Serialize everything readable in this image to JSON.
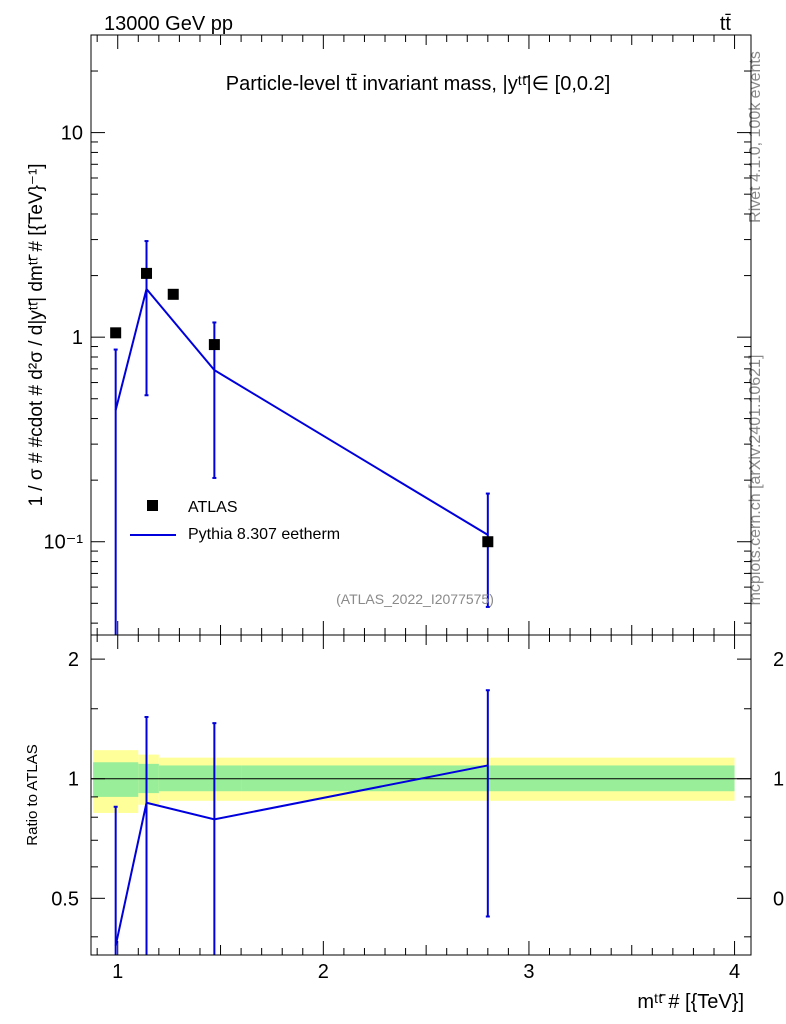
{
  "header": {
    "energy_label": "13000 GeV pp",
    "process_label": "tt̄"
  },
  "side_labels": {
    "rivet": "Rivet 4.1.0,  100k events",
    "mcplots": "mcplots.cern.ch [arXiv:2401.10621]"
  },
  "chart_data": [
    {
      "type": "scatter",
      "panel": "main",
      "title": "Particle-level tt̄ invariant mass, |yᵗᵗ̄|∈ [0,0.2]",
      "ylabel": "1 / σ # #cdot # d²σ / d|yᵗᵗ̄| dmᵗᵗ̄ # [{TeV}⁻¹]",
      "yscale": "log",
      "ylim": [
        0.035,
        30
      ],
      "xlim": [
        0.87,
        4.08
      ],
      "ytick_labels": [
        "10",
        "1",
        "10⁻¹"
      ],
      "ytick_values": [
        10,
        1,
        0.1
      ],
      "watermark": "(ATLAS_2022_I2077575)",
      "legend": {
        "placement": "left-center",
        "entries": [
          "ATLAS",
          "Pythia 8.307 eetherm"
        ]
      },
      "series": [
        {
          "name": "ATLAS",
          "marker": "square",
          "color": "#000000",
          "x": [
            0.99,
            1.14,
            1.27,
            1.47,
            2.8
          ],
          "y": [
            1.05,
            2.05,
            1.62,
            0.92,
            0.1
          ]
        },
        {
          "name": "Pythia 8.307 eetherm",
          "marker": "line",
          "color": "#0000dd",
          "x": [
            0.99,
            1.14,
            1.47,
            2.8
          ],
          "y": [
            0.44,
            1.72,
            0.69,
            0.108
          ],
          "err_lo": [
            0.02,
            0.52,
            0.205,
            0.048
          ],
          "err_hi": [
            0.87,
            2.95,
            1.18,
            0.172
          ]
        }
      ]
    },
    {
      "type": "line",
      "panel": "ratio",
      "ylabel": "Ratio to ATLAS",
      "xlabel": "mᵗᵗ̄ # [{TeV}]",
      "xlim": [
        0.87,
        4.08
      ],
      "ylim": [
        0.36,
        2.3
      ],
      "xtick_labels": [
        "1",
        "2",
        "3",
        "4"
      ],
      "xtick_values": [
        1,
        2,
        3,
        4
      ],
      "ytick_labels": [
        "2",
        "1",
        "0.5"
      ],
      "ytick_values": [
        2,
        1,
        0.5
      ],
      "bands": {
        "edges": [
          0.88,
          1.1,
          1.2,
          1.6,
          2.8,
          4.0
        ],
        "stat_lo": [
          0.9,
          0.92,
          0.93,
          0.93,
          0.93
        ],
        "stat_hi": [
          1.1,
          1.09,
          1.08,
          1.08,
          1.08
        ],
        "total_lo": [
          0.82,
          0.86,
          0.88,
          0.88,
          0.88
        ],
        "total_hi": [
          1.18,
          1.15,
          1.13,
          1.13,
          1.13
        ],
        "stat_color": "#99ee99",
        "total_color": "#ffff99"
      },
      "series": [
        {
          "name": "Pythia 8.307 eetherm",
          "color": "#0000dd",
          "x": [
            0.99,
            1.14,
            1.47,
            2.8
          ],
          "y": [
            0.38,
            0.87,
            0.79,
            1.08
          ],
          "err_lo": [
            0.3,
            0.3,
            0.3,
            0.45
          ],
          "err_hi": [
            0.85,
            1.43,
            1.38,
            1.67
          ]
        }
      ]
    }
  ]
}
